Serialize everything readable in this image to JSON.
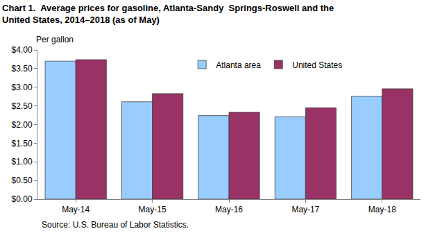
{
  "chart_data": {
    "type": "bar",
    "title": [
      "Chart 1.  Average prices for gasoline, Atlanta-Sandy  Springs-Roswell and the",
      "United States, 2014–2018 (as of May)"
    ],
    "ylabel": "Per gallon",
    "annotations": [
      "Source: U.S. Bureau of Labor Statistics."
    ],
    "categories": [
      "May-14",
      "May-15",
      "May-16",
      "May-17",
      "May-18"
    ],
    "series": [
      {
        "name": "Atlanta area",
        "color": "#99CCFF",
        "values": [
          3.7,
          2.61,
          2.24,
          2.21,
          2.76
        ]
      },
      {
        "name": "United States",
        "color": "#993366",
        "values": [
          3.74,
          2.83,
          2.33,
          2.45,
          2.96
        ]
      }
    ],
    "ylim": [
      0,
      4
    ],
    "yticks": [
      {
        "value": 0,
        "label": "$0.00"
      },
      {
        "value": 0.5,
        "label": "$0.50"
      },
      {
        "value": 1,
        "label": "$1.00"
      },
      {
        "value": 1.5,
        "label": "$1.50"
      },
      {
        "value": 2,
        "label": "$2.00"
      },
      {
        "value": 2.5,
        "label": "$2.50"
      },
      {
        "value": 3,
        "label": "$3.00"
      },
      {
        "value": 3.5,
        "label": "$3.50"
      },
      {
        "value": 4,
        "label": "$4.00"
      }
    ],
    "grid": false,
    "legend": "top"
  }
}
